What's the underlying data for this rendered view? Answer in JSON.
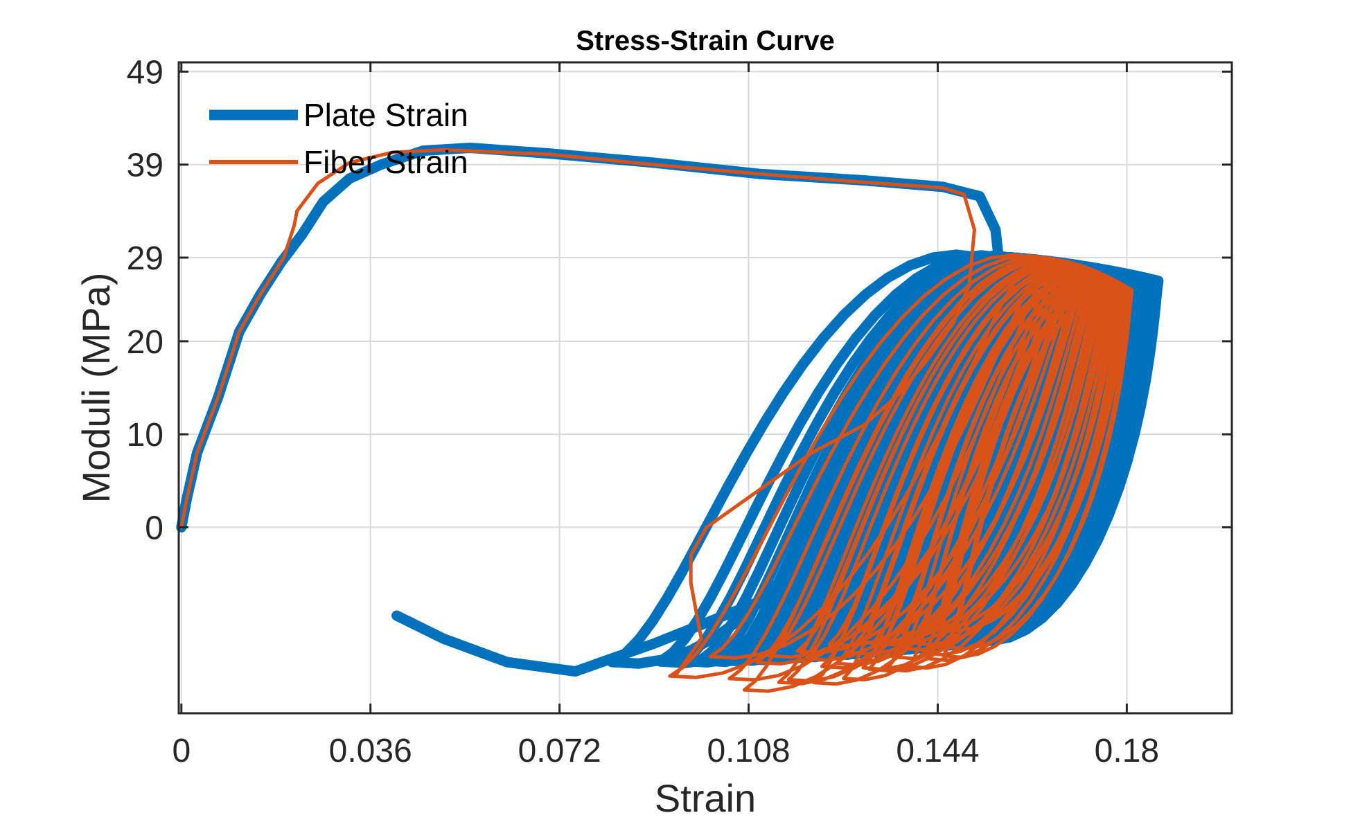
{
  "chart_data": {
    "type": "line",
    "title": "Stress-Strain Curve",
    "xlabel": "Strain",
    "ylabel": "Moduli (MPa)",
    "xlim": [
      -0.0005,
      0.2
    ],
    "ylim": [
      -20,
      50
    ],
    "xticks": [
      0,
      0.036,
      0.072,
      0.108,
      0.144,
      0.18
    ],
    "xtick_labels": [
      "0",
      "0.036",
      "0.072",
      "0.108",
      "0.144",
      "0.18"
    ],
    "yticks": [
      0,
      10,
      20,
      29,
      39,
      49
    ],
    "ytick_labels": [
      "0",
      "10",
      "20",
      "29",
      "39",
      "49"
    ],
    "grid": true,
    "legend_position": "top-left",
    "series": [
      {
        "name": "Plate Strain",
        "color": "#0072BD",
        "style": "thick",
        "monotonic": [
          [
            0,
            0
          ],
          [
            0.001,
            3
          ],
          [
            0.003,
            8
          ],
          [
            0.007,
            14
          ],
          [
            0.011,
            21
          ],
          [
            0.015,
            25
          ],
          [
            0.019,
            28.5
          ],
          [
            0.023,
            31.5
          ],
          [
            0.027,
            35
          ],
          [
            0.032,
            37.5
          ],
          [
            0.038,
            39
          ],
          [
            0.046,
            40.5
          ],
          [
            0.055,
            40.8
          ],
          [
            0.07,
            40.2
          ],
          [
            0.09,
            39.2
          ],
          [
            0.11,
            38
          ],
          [
            0.13,
            37.3
          ],
          [
            0.145,
            36.6
          ],
          [
            0.152,
            35.6
          ],
          [
            0.155,
            32
          ],
          [
            0.156,
            27
          ],
          [
            0.154,
            22
          ],
          [
            0.15,
            17
          ],
          [
            0.145,
            12
          ],
          [
            0.14,
            8
          ],
          [
            0.132,
            3
          ],
          [
            0.122,
            -3
          ],
          [
            0.11,
            -8
          ],
          [
            0.09,
            -12.5
          ],
          [
            0.075,
            -15.5
          ],
          [
            0.062,
            -14.5
          ],
          [
            0.05,
            -12
          ],
          [
            0.041,
            -9.5
          ]
        ],
        "cycle_start_strain": 0.082,
        "cycle_end_strain": 0.186,
        "cycle_peak_stress": [
          29,
          26.5
        ],
        "cycle_valley_stress": [
          -14.5,
          -12
        ],
        "cycle_count": 40
      },
      {
        "name": "Fiber Strain",
        "color": "#D95319",
        "style": "thin",
        "monotonic": [
          [
            0,
            0
          ],
          [
            0.001,
            3
          ],
          [
            0.003,
            8
          ],
          [
            0.007,
            14
          ],
          [
            0.011,
            21
          ],
          [
            0.015,
            25
          ],
          [
            0.0195,
            29
          ],
          [
            0.0215,
            32.5
          ],
          [
            0.022,
            34
          ],
          [
            0.026,
            37
          ],
          [
            0.032,
            39.2
          ],
          [
            0.04,
            40.3
          ],
          [
            0.05,
            40.6
          ],
          [
            0.07,
            40.1
          ],
          [
            0.09,
            39
          ],
          [
            0.11,
            38
          ],
          [
            0.13,
            37.1
          ],
          [
            0.145,
            36.5
          ],
          [
            0.149,
            35.8
          ],
          [
            0.151,
            32
          ],
          [
            0.15,
            26
          ],
          [
            0.147,
            22
          ],
          [
            0.142,
            18
          ],
          [
            0.136,
            14
          ],
          [
            0.13,
            11
          ],
          [
            0.12,
            8
          ],
          [
            0.11,
            4
          ],
          [
            0.1,
            0
          ],
          [
            0.097,
            -3
          ],
          [
            0.097,
            -6
          ],
          [
            0.098,
            -9
          ],
          [
            0.099,
            -12
          ],
          [
            0.094,
            -16
          ]
        ],
        "cycle_start_strain": 0.093,
        "cycle_end_strain": 0.181,
        "cycle_peak_stress": [
          29,
          25.5
        ],
        "cycle_valley_stress": [
          -16,
          -12
        ],
        "cycle_count": 34
      }
    ]
  }
}
